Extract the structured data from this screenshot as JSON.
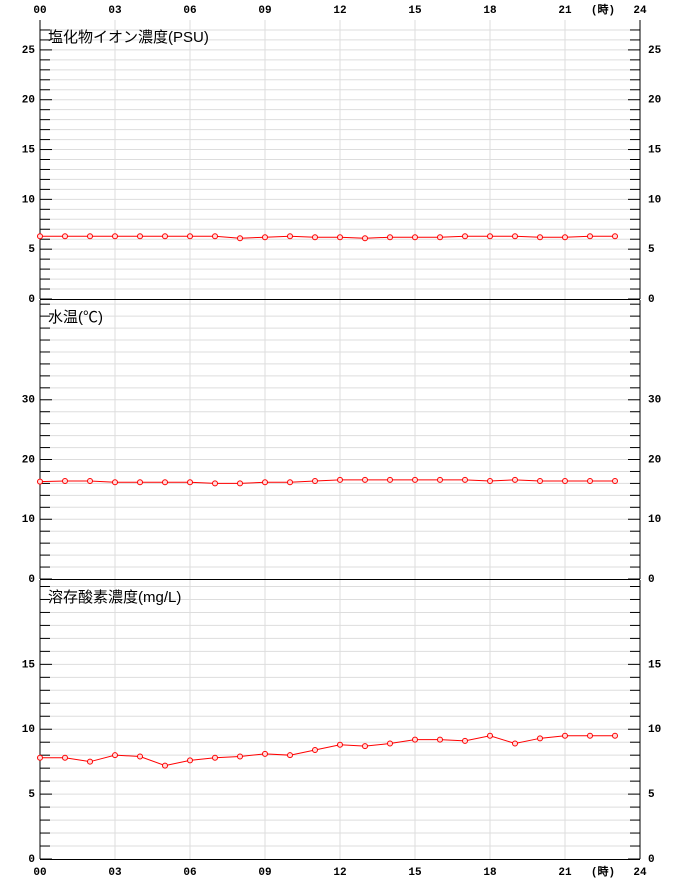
{
  "chart_data": [
    {
      "type": "line",
      "title": "塩化物イオン濃度(PSU)",
      "xlabel": "(時)",
      "x": [
        0,
        1,
        2,
        3,
        4,
        5,
        6,
        7,
        8,
        9,
        10,
        11,
        12,
        13,
        14,
        15,
        16,
        17,
        18,
        19,
        20,
        21,
        22,
        23
      ],
      "xlim": [
        0,
        24
      ],
      "xticks": [
        {
          "value": 0,
          "label": "00"
        },
        {
          "value": 3,
          "label": "03"
        },
        {
          "value": 6,
          "label": "06"
        },
        {
          "value": 9,
          "label": "09"
        },
        12,
        15,
        18,
        21,
        24
      ],
      "series": [
        {
          "color": "#ff0000",
          "values": [
            6.3,
            6.3,
            6.3,
            6.3,
            6.3,
            6.3,
            6.3,
            6.3,
            6.1,
            6.2,
            6.3,
            6.2,
            6.2,
            6.1,
            6.2,
            6.2,
            6.2,
            6.3,
            6.3,
            6.3,
            6.2,
            6.2,
            6.3,
            6.3
          ]
        }
      ],
      "ylim": [
        0,
        28
      ],
      "yticks": [
        0,
        5,
        10,
        15,
        20,
        25
      ],
      "minor_yticks": [
        1,
        2,
        3,
        4,
        6,
        7,
        8,
        9,
        11,
        12,
        13,
        14,
        16,
        17,
        18,
        19,
        21,
        22,
        23,
        24,
        26,
        27
      ],
      "grid": true
    },
    {
      "type": "line",
      "title": "水温(℃)",
      "x": [
        0,
        1,
        2,
        3,
        4,
        5,
        6,
        7,
        8,
        9,
        10,
        11,
        12,
        13,
        14,
        15,
        16,
        17,
        18,
        19,
        20,
        21,
        22,
        23
      ],
      "xlim": [
        0,
        24
      ],
      "series": [
        {
          "color": "#ff0000",
          "values": [
            16.3,
            16.4,
            16.4,
            16.2,
            16.2,
            16.2,
            16.2,
            16.0,
            16.0,
            16.2,
            16.2,
            16.4,
            16.6,
            16.6,
            16.6,
            16.6,
            16.6,
            16.6,
            16.4,
            16.6,
            16.4,
            16.4,
            16.4,
            16.4
          ]
        }
      ],
      "ylim": [
        0,
        46.7
      ],
      "yticks": [
        0,
        10,
        20,
        30
      ],
      "minor_yticks": [
        2,
        4,
        6,
        8,
        12,
        14,
        16,
        18,
        22,
        24,
        26,
        28,
        32,
        34,
        36,
        38,
        40,
        42,
        44,
        46
      ],
      "grid": true
    },
    {
      "type": "line",
      "title": "溶存酸素濃度(mg/L)",
      "xlabel": "(時)",
      "x": [
        0,
        1,
        2,
        3,
        4,
        5,
        6,
        7,
        8,
        9,
        10,
        11,
        12,
        13,
        14,
        15,
        16,
        17,
        18,
        19,
        20,
        21,
        22,
        23
      ],
      "xlim": [
        0,
        24
      ],
      "xticks": [
        {
          "value": 0,
          "label": "00"
        },
        {
          "value": 3,
          "label": "03"
        },
        {
          "value": 6,
          "label": "06"
        },
        {
          "value": 9,
          "label": "09"
        },
        12,
        15,
        18,
        21,
        24
      ],
      "series": [
        {
          "color": "#ff0000",
          "values": [
            7.8,
            7.8,
            7.5,
            8.0,
            7.9,
            7.2,
            7.6,
            7.8,
            7.9,
            8.1,
            8.0,
            8.4,
            8.8,
            8.7,
            8.9,
            9.2,
            9.2,
            9.1,
            9.5,
            8.9,
            9.3,
            9.5,
            9.5,
            9.5
          ]
        }
      ],
      "ylim": [
        0,
        21.5
      ],
      "yticks": [
        0,
        5,
        10,
        15
      ],
      "minor_yticks": [
        1,
        2,
        3,
        4,
        6,
        7,
        8,
        9,
        11,
        12,
        13,
        14,
        16,
        17,
        18,
        19,
        20,
        21
      ],
      "grid": true
    }
  ]
}
